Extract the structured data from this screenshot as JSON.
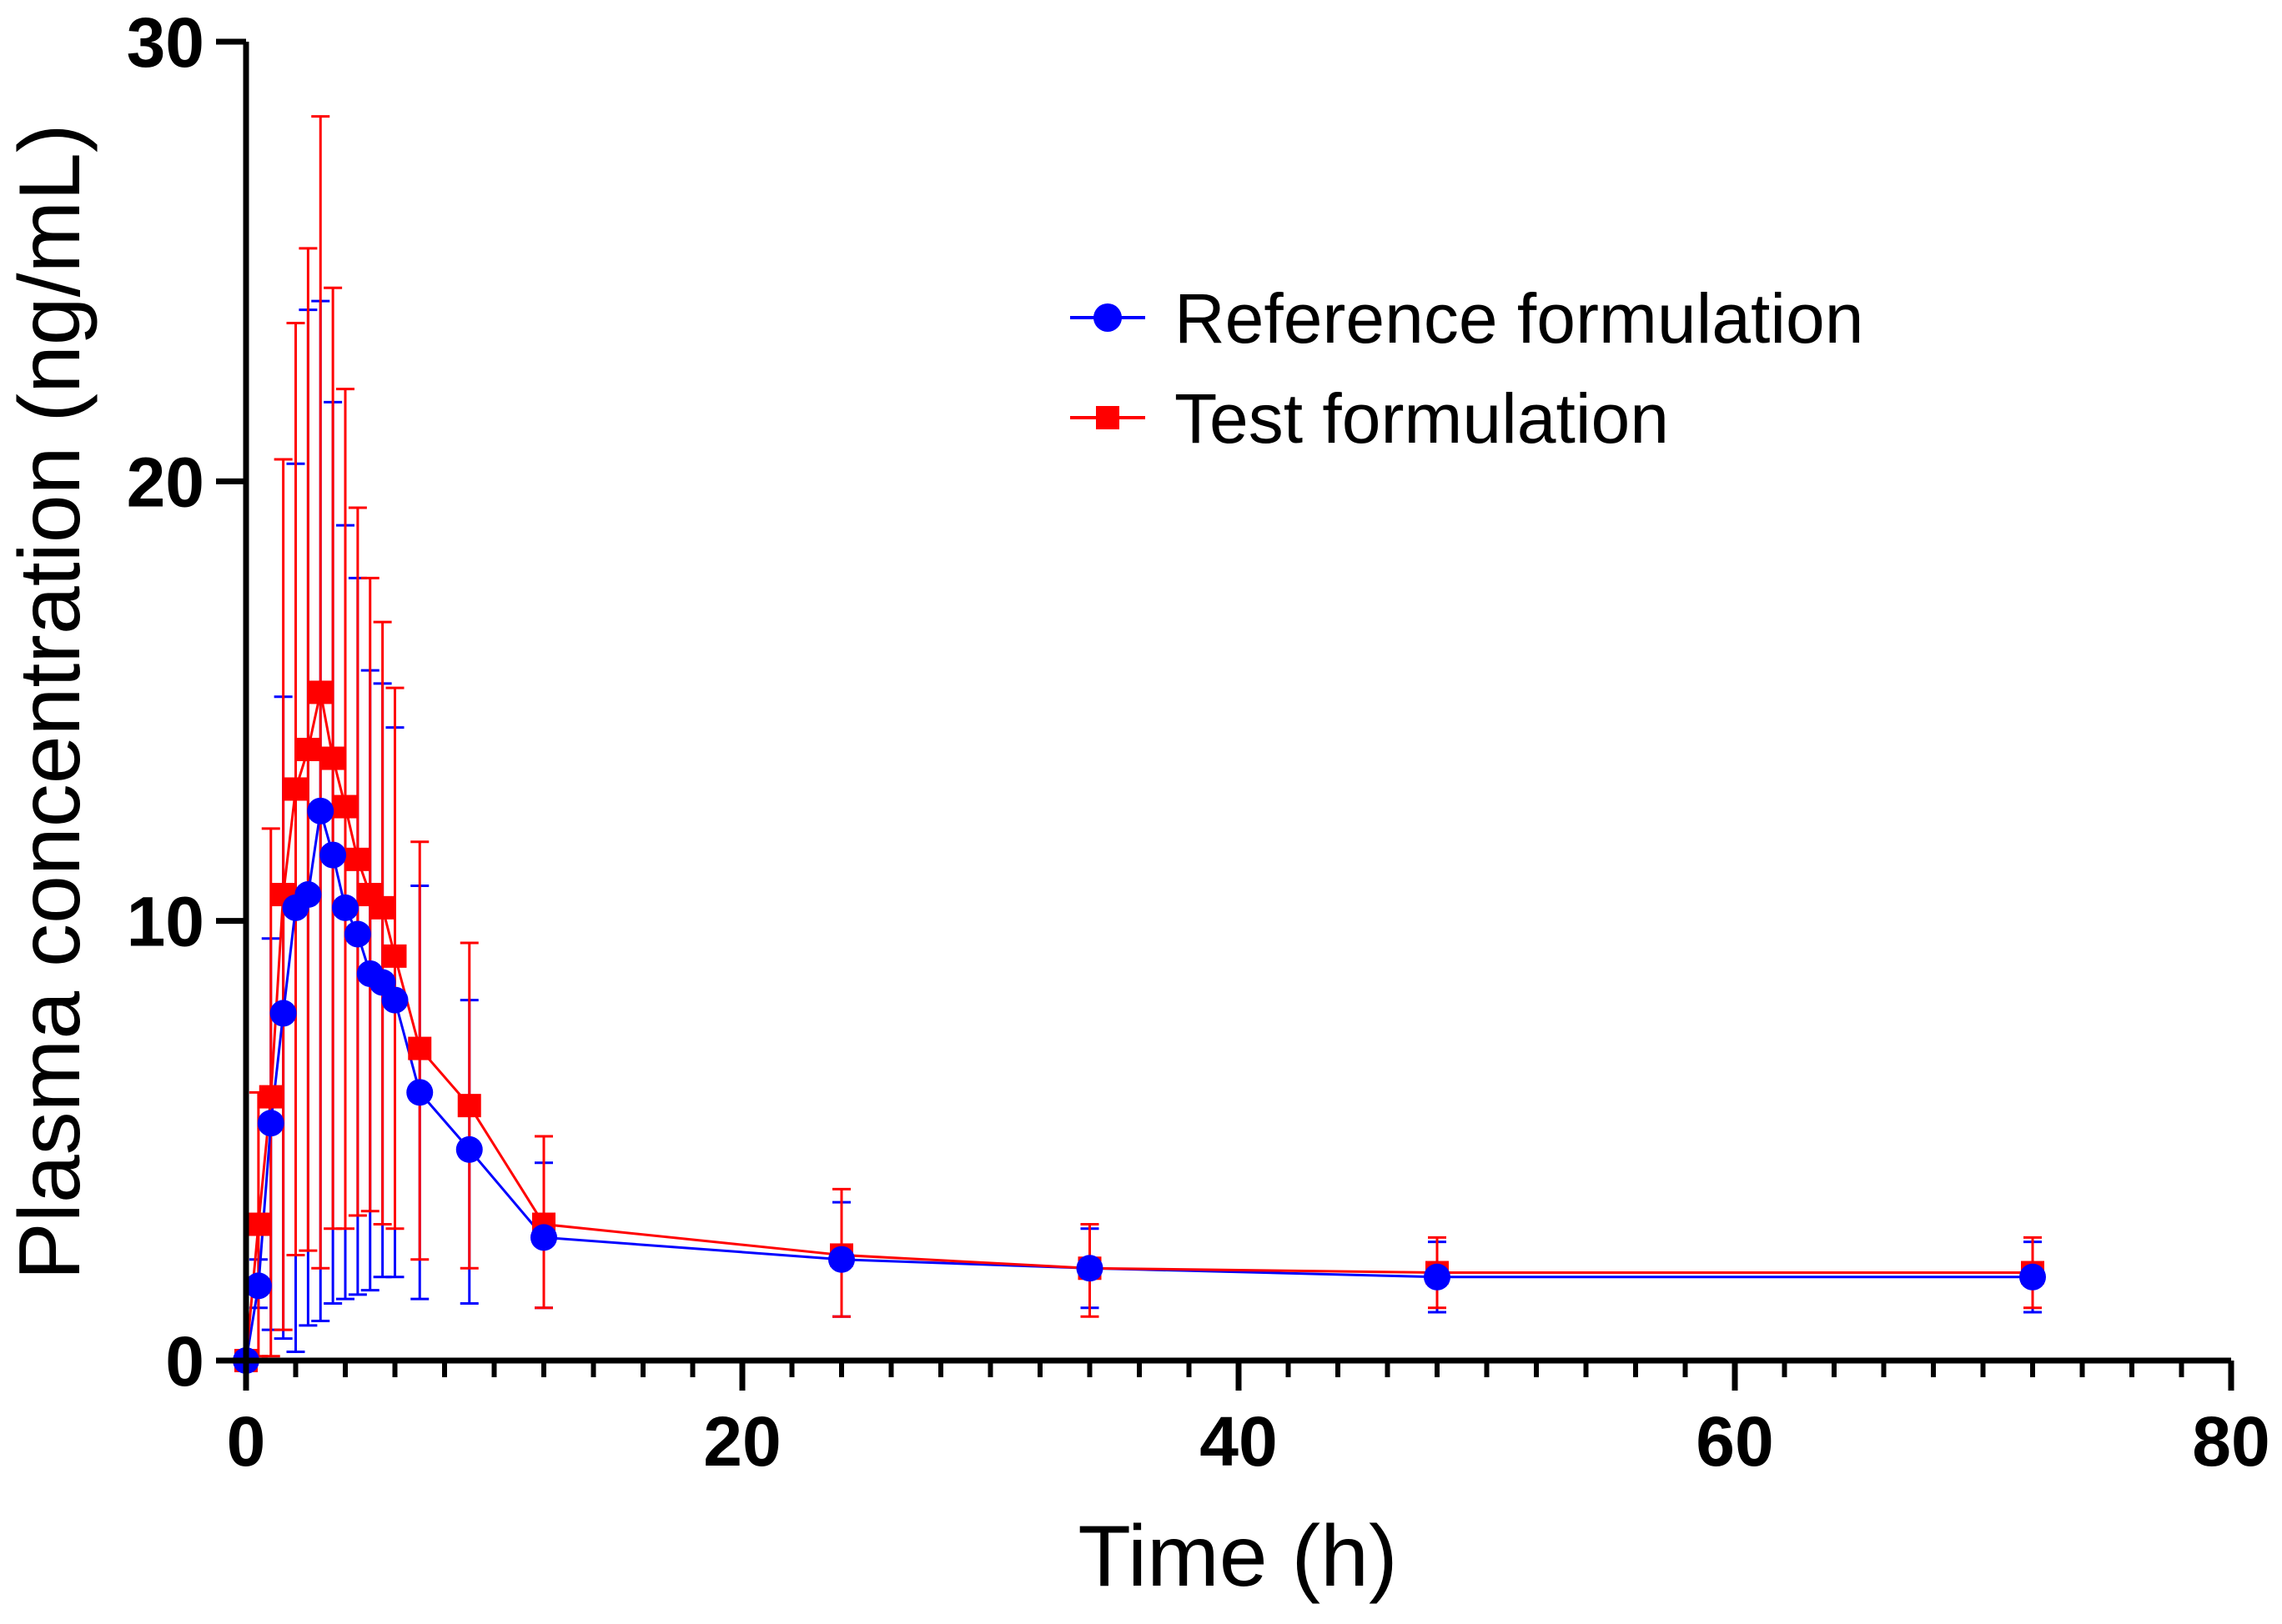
{
  "chart_data": {
    "type": "line",
    "xlabel": "Time (h)",
    "ylabel": "Plasma concentration (ng/mL)",
    "xlim": [
      0,
      80
    ],
    "ylim": [
      0,
      30
    ],
    "x_major_ticks": [
      0,
      20,
      40,
      60,
      80
    ],
    "y_major_ticks": [
      0,
      10,
      20,
      30
    ],
    "x_minor_step": 2,
    "legend_position": "top-right",
    "series": [
      {
        "name": "Reference formulation",
        "color": "#0000ff",
        "marker": "circle",
        "x": [
          0,
          0.5,
          1,
          1.5,
          2,
          2.5,
          3,
          3.5,
          4,
          4.5,
          5,
          5.5,
          6,
          7,
          9,
          12,
          24,
          34,
          48,
          72
        ],
        "y": [
          0,
          1.7,
          5.4,
          7.9,
          10.3,
          10.6,
          12.5,
          11.5,
          10.3,
          9.7,
          8.8,
          8.6,
          8.2,
          6.1,
          4.8,
          2.8,
          2.3,
          2.1,
          1.9,
          1.9
        ],
        "err_upper": [
          0,
          2.3,
          9.6,
          15.1,
          20.4,
          23.9,
          24.1,
          21.8,
          19.0,
          17.8,
          15.7,
          15.4,
          14.4,
          10.8,
          8.2,
          4.5,
          3.6,
          3.0,
          2.7,
          2.7
        ],
        "err_lower": [
          0,
          1.2,
          0.7,
          0.5,
          0.2,
          0.8,
          0.9,
          1.3,
          1.4,
          1.5,
          1.6,
          1.9,
          1.9,
          1.4,
          1.3,
          1.2,
          1.0,
          1.2,
          1.1,
          1.1
        ]
      },
      {
        "name": "Test formulation",
        "color": "#ff0000",
        "marker": "square",
        "x": [
          0,
          0.5,
          1,
          1.5,
          2,
          2.5,
          3,
          3.5,
          4,
          4.5,
          5,
          5.5,
          6,
          7,
          9,
          12,
          24,
          34,
          48,
          72
        ],
        "y": [
          0,
          3.1,
          6.0,
          10.6,
          13.0,
          13.9,
          15.2,
          13.7,
          12.6,
          11.4,
          10.6,
          10.3,
          9.2,
          7.1,
          5.8,
          3.1,
          2.4,
          2.1,
          2.0,
          2.0
        ],
        "err_upper": [
          0,
          6.1,
          12.1,
          20.5,
          23.6,
          25.3,
          28.3,
          24.4,
          22.1,
          19.4,
          17.8,
          16.8,
          15.3,
          11.8,
          9.5,
          5.1,
          3.9,
          3.1,
          2.8,
          2.8
        ],
        "err_lower": [
          0,
          0.1,
          0.1,
          0.7,
          2.4,
          2.5,
          2.1,
          3.0,
          3.0,
          3.3,
          3.4,
          3.1,
          3.0,
          2.3,
          2.1,
          1.2,
          1.0,
          1.0,
          1.2,
          1.2
        ]
      }
    ]
  }
}
